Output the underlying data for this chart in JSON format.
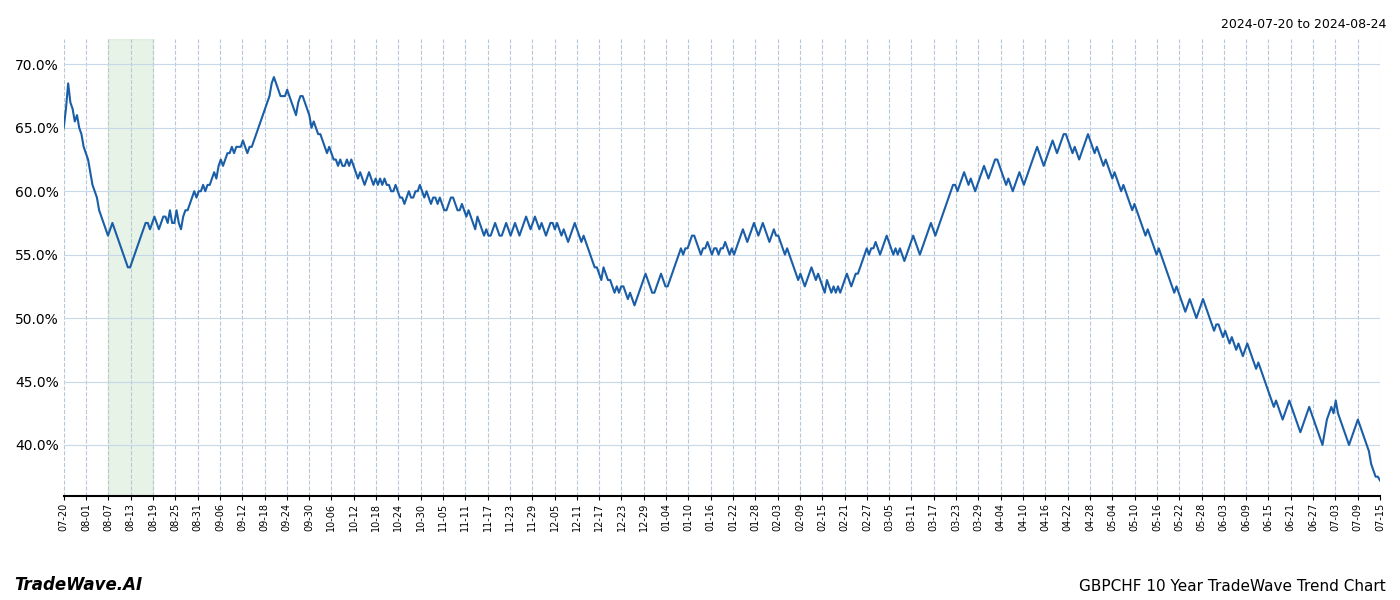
{
  "title_right": "2024-07-20 to 2024-08-24",
  "title_bottom_left": "TradeWave.AI",
  "title_bottom_right": "GBPCHF 10 Year TradeWave Trend Chart",
  "line_color": "#1a5ea8",
  "line_width": 1.5,
  "background_color": "#ffffff",
  "grid_color_x": "#b8c8d8",
  "grid_color_y": "#c8d8e8",
  "highlight_color": "#c8e6c8",
  "highlight_alpha": 0.45,
  "ylim": [
    36,
    72
  ],
  "yticks": [
    40,
    45,
    50,
    55,
    60,
    65,
    70
  ],
  "x_labels": [
    "07-20",
    "08-01",
    "08-07",
    "08-13",
    "08-19",
    "08-25",
    "08-31",
    "09-06",
    "09-12",
    "09-18",
    "09-24",
    "09-30",
    "10-06",
    "10-12",
    "10-18",
    "10-24",
    "10-30",
    "11-05",
    "11-11",
    "11-17",
    "11-23",
    "11-29",
    "12-05",
    "12-11",
    "12-17",
    "12-23",
    "12-29",
    "01-04",
    "01-10",
    "01-16",
    "01-22",
    "01-28",
    "02-03",
    "02-09",
    "02-15",
    "02-21",
    "02-27",
    "03-05",
    "03-11",
    "03-17",
    "03-23",
    "03-29",
    "04-04",
    "04-10",
    "04-16",
    "04-22",
    "04-28",
    "05-04",
    "05-10",
    "05-16",
    "05-22",
    "05-28",
    "06-03",
    "06-09",
    "06-15",
    "06-21",
    "06-27",
    "07-03",
    "07-09",
    "07-15"
  ],
  "highlight_x_start_label": "08-07",
  "highlight_x_end_label": "08-19",
  "values": [
    65.0,
    66.5,
    68.5,
    67.0,
    66.5,
    65.5,
    66.0,
    65.0,
    64.5,
    63.5,
    63.0,
    62.5,
    61.5,
    60.5,
    60.0,
    59.5,
    58.5,
    58.0,
    57.5,
    57.0,
    56.5,
    57.0,
    57.5,
    57.0,
    56.5,
    56.0,
    55.5,
    55.0,
    54.5,
    54.0,
    54.0,
    54.5,
    55.0,
    55.5,
    56.0,
    56.5,
    57.0,
    57.5,
    57.5,
    57.0,
    57.5,
    58.0,
    57.5,
    57.0,
    57.5,
    58.0,
    58.0,
    57.5,
    58.5,
    57.5,
    57.5,
    58.5,
    57.5,
    57.0,
    58.0,
    58.5,
    58.5,
    59.0,
    59.5,
    60.0,
    59.5,
    60.0,
    60.0,
    60.5,
    60.0,
    60.5,
    60.5,
    61.0,
    61.5,
    61.0,
    62.0,
    62.5,
    62.0,
    62.5,
    63.0,
    63.0,
    63.5,
    63.0,
    63.5,
    63.5,
    63.5,
    64.0,
    63.5,
    63.0,
    63.5,
    63.5,
    64.0,
    64.5,
    65.0,
    65.5,
    66.0,
    66.5,
    67.0,
    67.5,
    68.5,
    69.0,
    68.5,
    68.0,
    67.5,
    67.5,
    67.5,
    68.0,
    67.5,
    67.0,
    66.5,
    66.0,
    67.0,
    67.5,
    67.5,
    67.0,
    66.5,
    66.0,
    65.0,
    65.5,
    65.0,
    64.5,
    64.5,
    64.0,
    63.5,
    63.0,
    63.5,
    63.0,
    62.5,
    62.5,
    62.0,
    62.5,
    62.0,
    62.0,
    62.5,
    62.0,
    62.5,
    62.0,
    61.5,
    61.0,
    61.5,
    61.0,
    60.5,
    61.0,
    61.5,
    61.0,
    60.5,
    61.0,
    60.5,
    61.0,
    60.5,
    61.0,
    60.5,
    60.5,
    60.0,
    60.0,
    60.5,
    60.0,
    59.5,
    59.5,
    59.0,
    59.5,
    60.0,
    59.5,
    59.5,
    60.0,
    60.0,
    60.5,
    60.0,
    59.5,
    60.0,
    59.5,
    59.0,
    59.5,
    59.5,
    59.0,
    59.5,
    59.0,
    58.5,
    58.5,
    59.0,
    59.5,
    59.5,
    59.0,
    58.5,
    58.5,
    59.0,
    58.5,
    58.0,
    58.5,
    58.0,
    57.5,
    57.0,
    58.0,
    57.5,
    57.0,
    56.5,
    57.0,
    56.5,
    56.5,
    57.0,
    57.5,
    57.0,
    56.5,
    56.5,
    57.0,
    57.5,
    57.0,
    56.5,
    57.0,
    57.5,
    57.0,
    56.5,
    57.0,
    57.5,
    58.0,
    57.5,
    57.0,
    57.5,
    58.0,
    57.5,
    57.0,
    57.5,
    57.0,
    56.5,
    57.0,
    57.5,
    57.5,
    57.0,
    57.5,
    57.0,
    56.5,
    57.0,
    56.5,
    56.0,
    56.5,
    57.0,
    57.5,
    57.0,
    56.5,
    56.0,
    56.5,
    56.0,
    55.5,
    55.0,
    54.5,
    54.0,
    54.0,
    53.5,
    53.0,
    54.0,
    53.5,
    53.0,
    53.0,
    52.5,
    52.0,
    52.5,
    52.0,
    52.5,
    52.5,
    52.0,
    51.5,
    52.0,
    51.5,
    51.0,
    51.5,
    52.0,
    52.5,
    53.0,
    53.5,
    53.0,
    52.5,
    52.0,
    52.0,
    52.5,
    53.0,
    53.5,
    53.0,
    52.5,
    52.5,
    53.0,
    53.5,
    54.0,
    54.5,
    55.0,
    55.5,
    55.0,
    55.5,
    55.5,
    56.0,
    56.5,
    56.5,
    56.0,
    55.5,
    55.0,
    55.5,
    55.5,
    56.0,
    55.5,
    55.0,
    55.5,
    55.5,
    55.0,
    55.5,
    55.5,
    56.0,
    55.5,
    55.0,
    55.5,
    55.0,
    55.5,
    56.0,
    56.5,
    57.0,
    56.5,
    56.0,
    56.5,
    57.0,
    57.5,
    57.0,
    56.5,
    57.0,
    57.5,
    57.0,
    56.5,
    56.0,
    56.5,
    57.0,
    56.5,
    56.5,
    56.0,
    55.5,
    55.0,
    55.5,
    55.0,
    54.5,
    54.0,
    53.5,
    53.0,
    53.5,
    53.0,
    52.5,
    53.0,
    53.5,
    54.0,
    53.5,
    53.0,
    53.5,
    53.0,
    52.5,
    52.0,
    53.0,
    52.5,
    52.0,
    52.5,
    52.0,
    52.5,
    52.0,
    52.5,
    53.0,
    53.5,
    53.0,
    52.5,
    53.0,
    53.5,
    53.5,
    54.0,
    54.5,
    55.0,
    55.5,
    55.0,
    55.5,
    55.5,
    56.0,
    55.5,
    55.0,
    55.5,
    56.0,
    56.5,
    56.0,
    55.5,
    55.0,
    55.5,
    55.0,
    55.5,
    55.0,
    54.5,
    55.0,
    55.5,
    56.0,
    56.5,
    56.0,
    55.5,
    55.0,
    55.5,
    56.0,
    56.5,
    57.0,
    57.5,
    57.0,
    56.5,
    57.0,
    57.5,
    58.0,
    58.5,
    59.0,
    59.5,
    60.0,
    60.5,
    60.5,
    60.0,
    60.5,
    61.0,
    61.5,
    61.0,
    60.5,
    61.0,
    60.5,
    60.0,
    60.5,
    61.0,
    61.5,
    62.0,
    61.5,
    61.0,
    61.5,
    62.0,
    62.5,
    62.5,
    62.0,
    61.5,
    61.0,
    60.5,
    61.0,
    60.5,
    60.0,
    60.5,
    61.0,
    61.5,
    61.0,
    60.5,
    61.0,
    61.5,
    62.0,
    62.5,
    63.0,
    63.5,
    63.0,
    62.5,
    62.0,
    62.5,
    63.0,
    63.5,
    64.0,
    63.5,
    63.0,
    63.5,
    64.0,
    64.5,
    64.5,
    64.0,
    63.5,
    63.0,
    63.5,
    63.0,
    62.5,
    63.0,
    63.5,
    64.0,
    64.5,
    64.0,
    63.5,
    63.0,
    63.5,
    63.0,
    62.5,
    62.0,
    62.5,
    62.0,
    61.5,
    61.0,
    61.5,
    61.0,
    60.5,
    60.0,
    60.5,
    60.0,
    59.5,
    59.0,
    58.5,
    59.0,
    58.5,
    58.0,
    57.5,
    57.0,
    56.5,
    57.0,
    56.5,
    56.0,
    55.5,
    55.0,
    55.5,
    55.0,
    54.5,
    54.0,
    53.5,
    53.0,
    52.5,
    52.0,
    52.5,
    52.0,
    51.5,
    51.0,
    50.5,
    51.0,
    51.5,
    51.0,
    50.5,
    50.0,
    50.5,
    51.0,
    51.5,
    51.0,
    50.5,
    50.0,
    49.5,
    49.0,
    49.5,
    49.5,
    49.0,
    48.5,
    49.0,
    48.5,
    48.0,
    48.5,
    48.0,
    47.5,
    48.0,
    47.5,
    47.0,
    47.5,
    48.0,
    47.5,
    47.0,
    46.5,
    46.0,
    46.5,
    46.0,
    45.5,
    45.0,
    44.5,
    44.0,
    43.5,
    43.0,
    43.5,
    43.0,
    42.5,
    42.0,
    42.5,
    43.0,
    43.5,
    43.0,
    42.5,
    42.0,
    41.5,
    41.0,
    41.5,
    42.0,
    42.5,
    43.0,
    42.5,
    42.0,
    41.5,
    41.0,
    40.5,
    40.0,
    41.0,
    42.0,
    42.5,
    43.0,
    42.5,
    43.5,
    42.5,
    42.0,
    41.5,
    41.0,
    40.5,
    40.0,
    40.5,
    41.0,
    41.5,
    42.0,
    41.5,
    41.0,
    40.5,
    40.0,
    39.5,
    38.5,
    38.0,
    37.5,
    37.5,
    37.2
  ]
}
